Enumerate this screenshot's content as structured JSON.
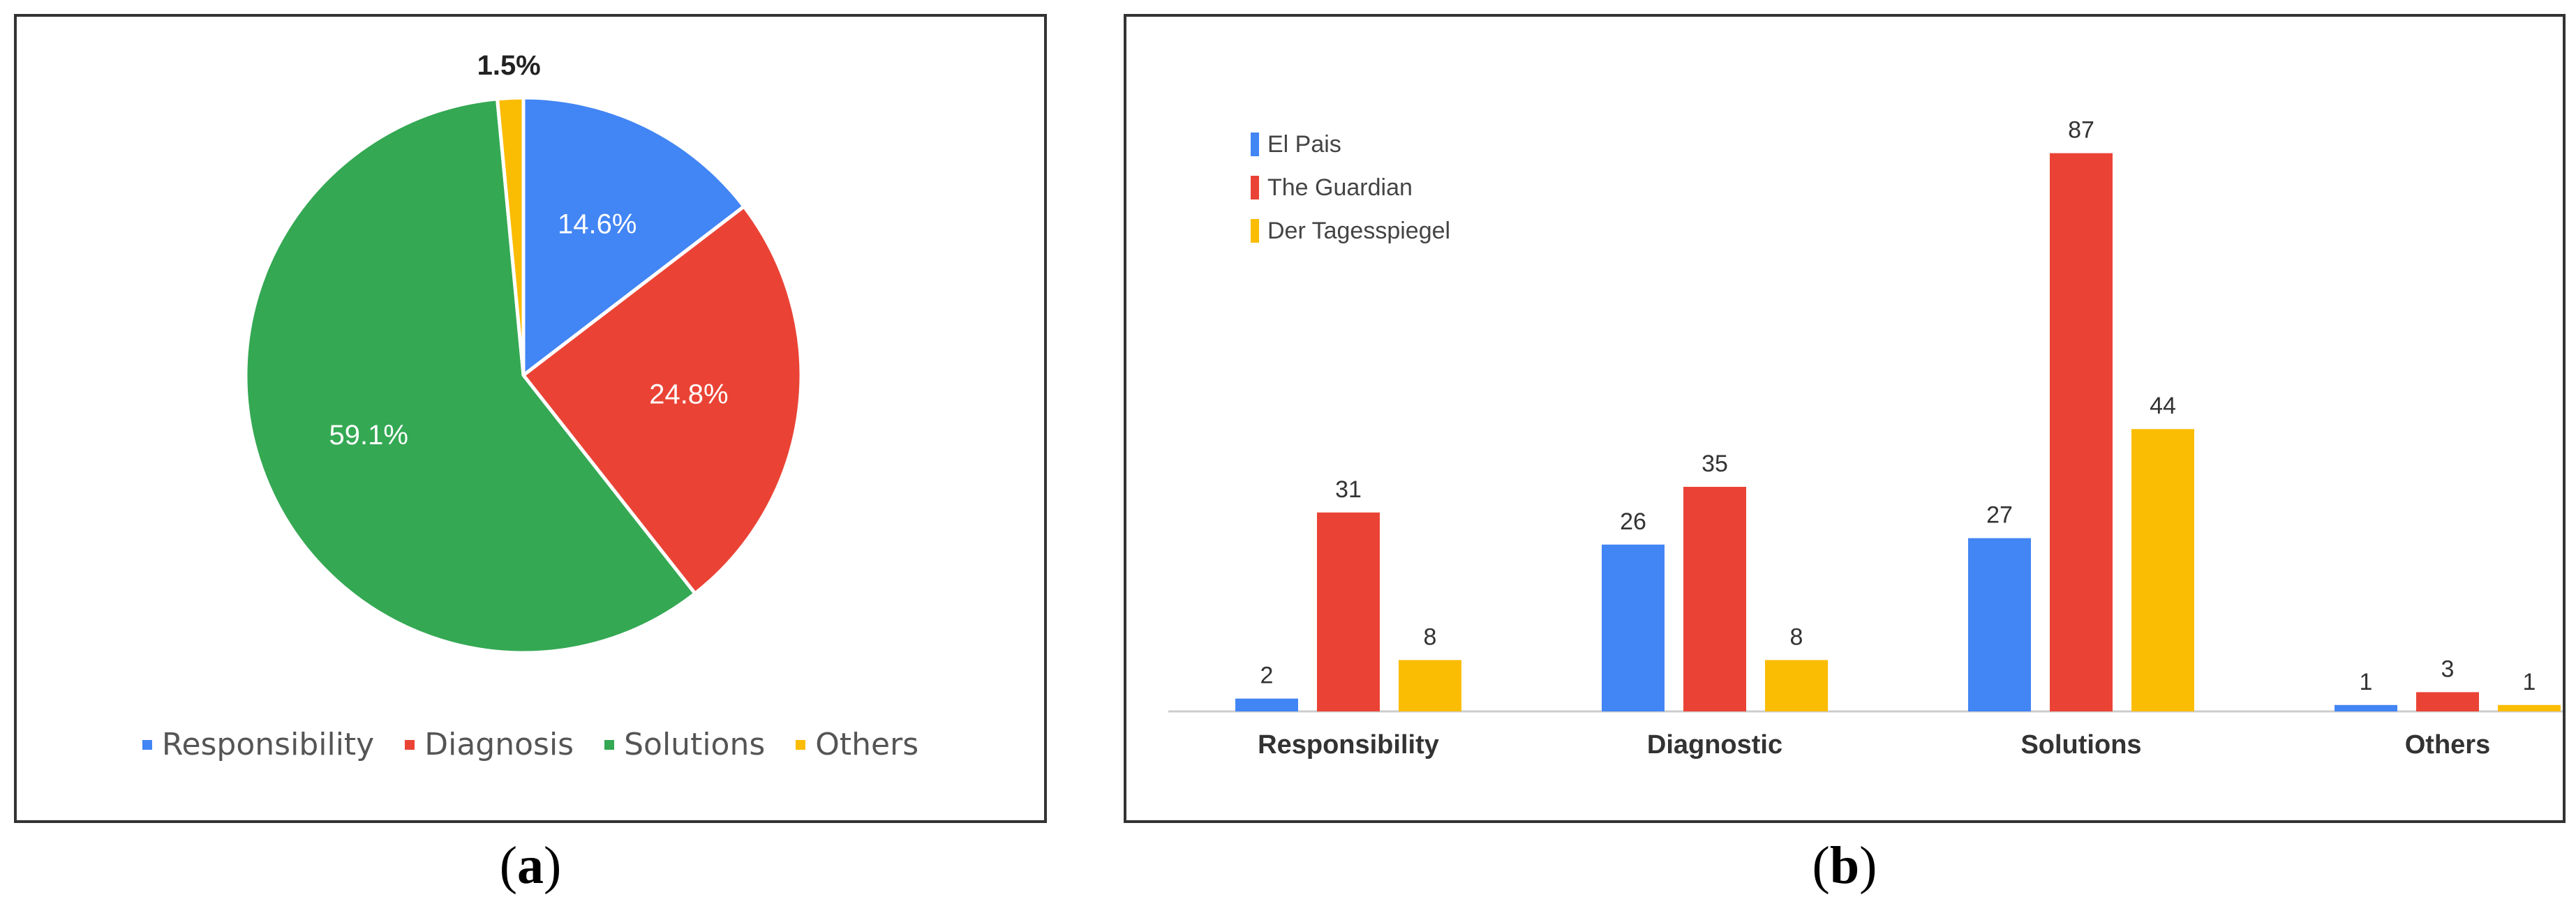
{
  "chart_data": [
    {
      "type": "pie",
      "panel_label": "a",
      "slices": [
        {
          "name": "Responsibility",
          "value": 14.6,
          "label": "14.6%",
          "color": "#4285F4"
        },
        {
          "name": "Diagnosis",
          "value": 24.8,
          "label": "24.8%",
          "color": "#EA4335"
        },
        {
          "name": "Solutions",
          "value": 59.1,
          "label": "59.1%",
          "color": "#34A853"
        },
        {
          "name": "Others",
          "value": 1.5,
          "label": "1.5%",
          "color": "#FBBC04"
        }
      ],
      "legend": [
        "Responsibility",
        "Diagnosis",
        "Solutions",
        "Others"
      ],
      "legend_position": "bottom"
    },
    {
      "type": "bar",
      "panel_label": "b",
      "categories": [
        "Responsibility",
        "Diagnostic",
        "Solutions",
        "Others"
      ],
      "series": [
        {
          "name": "El Pais",
          "values": [
            2,
            26,
            27,
            1
          ],
          "color": "#4285F4"
        },
        {
          "name": "The Guardian",
          "values": [
            31,
            35,
            87,
            3
          ],
          "color": "#EA4335"
        },
        {
          "name": "Der Tagesspiegel",
          "values": [
            8,
            8,
            44,
            1
          ],
          "color": "#FBBC04"
        }
      ],
      "ylim": [
        0,
        90
      ],
      "grid": false,
      "legend_position": "top-left"
    }
  ]
}
